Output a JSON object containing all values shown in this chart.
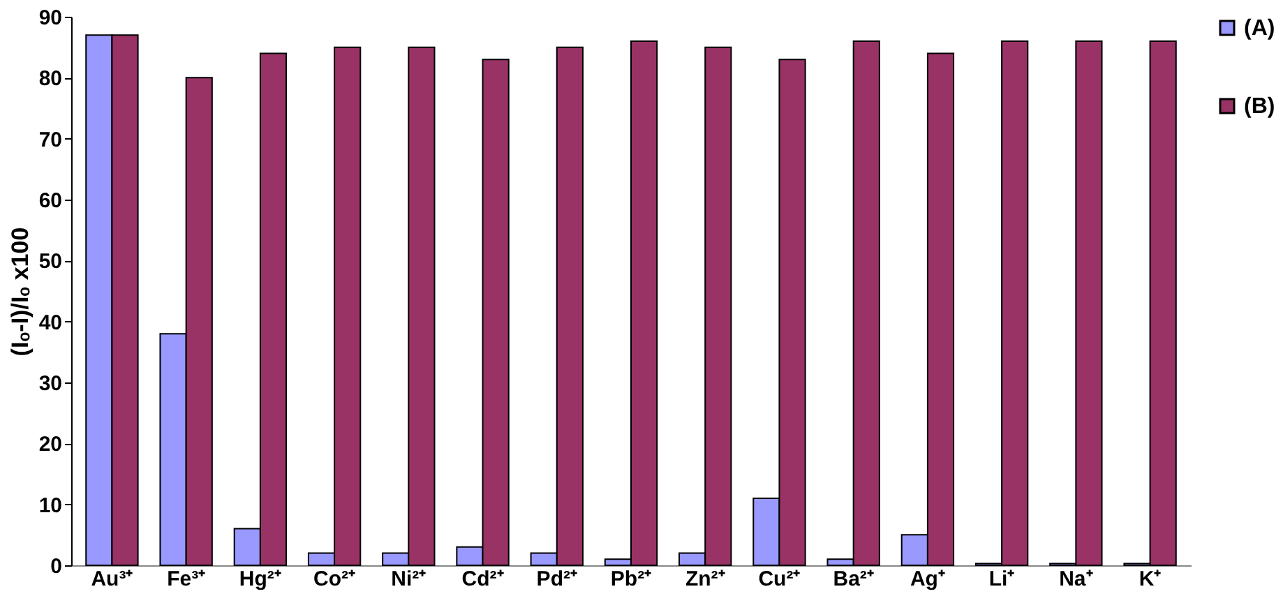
{
  "chart_data": {
    "type": "bar",
    "ylabel": "(Iₒ-I)/Iₒ x100",
    "categories": [
      "Au³⁺",
      "Fe³⁺",
      "Hg²⁺",
      "Co²⁺",
      "Ni²⁺",
      "Cd²⁺",
      "Pd²⁺",
      "Pb²⁺",
      "Zn²⁺",
      "Cu²⁺",
      "Ba²⁺",
      "Ag⁺",
      "Li⁺",
      "Na⁺",
      "K⁺"
    ],
    "series": [
      {
        "name": "(A)",
        "color": "#9999ff",
        "values": [
          87,
          38,
          6,
          2,
          2,
          3,
          2,
          1,
          2,
          11,
          1,
          5,
          0.3,
          0.3,
          0.3
        ]
      },
      {
        "name": "(B)",
        "color": "#993366",
        "values": [
          87,
          80,
          84,
          85,
          85,
          83,
          85,
          86,
          85,
          83,
          86,
          84,
          86,
          86,
          86
        ]
      }
    ],
    "ylim": [
      0,
      90
    ],
    "yticks": [
      0,
      10,
      20,
      30,
      40,
      50,
      60,
      70,
      80,
      90
    ],
    "grid": false,
    "legend": "right"
  }
}
